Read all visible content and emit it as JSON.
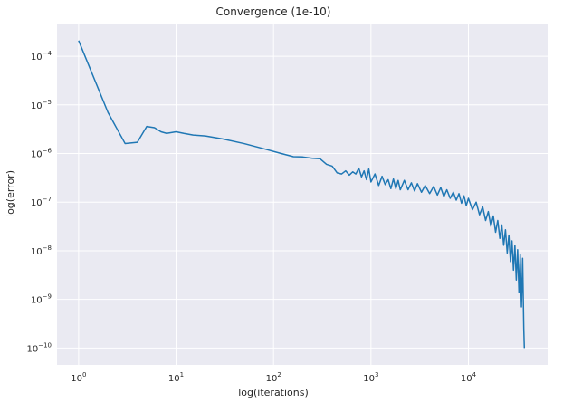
{
  "chart_data": {
    "type": "line",
    "title": "Convergence (1e-10)",
    "xlabel": "log(iterations)",
    "ylabel": "log(error)",
    "xscale": "log",
    "yscale": "log",
    "xlim": [
      0.6,
      65000
    ],
    "ylim": [
      4.5e-11,
      0.00045
    ],
    "grid": true,
    "series_color": "#1f77b4",
    "background_color": "#eaeaf2",
    "grid_color": "#ffffff",
    "x_ticks": [
      {
        "value": 1,
        "base": "10",
        "exp": "0"
      },
      {
        "value": 10,
        "base": "10",
        "exp": "1"
      },
      {
        "value": 100,
        "base": "10",
        "exp": "2"
      },
      {
        "value": 1000,
        "base": "10",
        "exp": "3"
      },
      {
        "value": 10000,
        "base": "10",
        "exp": "4"
      }
    ],
    "y_ticks": [
      {
        "value": 1e-10,
        "base": "10",
        "exp": "−10"
      },
      {
        "value": 1e-09,
        "base": "10",
        "exp": "−9"
      },
      {
        "value": 1e-08,
        "base": "10",
        "exp": "−8"
      },
      {
        "value": 1e-07,
        "base": "10",
        "exp": "−7"
      },
      {
        "value": 1e-06,
        "base": "10",
        "exp": "−6"
      },
      {
        "value": 1e-05,
        "base": "10",
        "exp": "−5"
      },
      {
        "value": 0.0001,
        "base": "10",
        "exp": "−4"
      }
    ],
    "series": [
      {
        "x": [
          1,
          2,
          3,
          4,
          5,
          6,
          7,
          8,
          10,
          12,
          15,
          20,
          30,
          50,
          80,
          120,
          160,
          200,
          250,
          300,
          350,
          400,
          450,
          500,
          550,
          600,
          650,
          700,
          750,
          800,
          850,
          900,
          950,
          1000,
          1100,
          1200,
          1300,
          1400,
          1500,
          1600,
          1700,
          1800,
          1900,
          2000,
          2200,
          2400,
          2600,
          2800,
          3000,
          3300,
          3600,
          4000,
          4400,
          4800,
          5200,
          5600,
          6000,
          6500,
          7000,
          7500,
          8000,
          8500,
          9000,
          9500,
          10000,
          11000,
          12000,
          13000,
          14000,
          15000,
          16000,
          17000,
          18000,
          19000,
          20000,
          21000,
          22000,
          23000,
          24000,
          25000,
          26000,
          27000,
          28000,
          29000,
          30000,
          31000,
          32000,
          33000,
          34000,
          35000,
          36000,
          37000,
          37500
        ],
        "y": [
          0.00021,
          7e-06,
          1.6e-06,
          1.7e-06,
          3.6e-06,
          3.4e-06,
          2.8e-06,
          2.6e-06,
          2.8e-06,
          2.6e-06,
          2.4e-06,
          2.3e-06,
          2e-06,
          1.6e-06,
          1.25e-06,
          1e-06,
          8.6e-07,
          8.5e-07,
          8e-07,
          7.8e-07,
          6e-07,
          5.5e-07,
          4e-07,
          3.8e-07,
          4.4e-07,
          3.6e-07,
          4.2e-07,
          3.8e-07,
          5e-07,
          3.3e-07,
          4.4e-07,
          2.9e-07,
          4.8e-07,
          2.6e-07,
          3.8e-07,
          2.2e-07,
          3.4e-07,
          2.3e-07,
          2.9e-07,
          1.9e-07,
          3e-07,
          1.9e-07,
          2.8e-07,
          1.8e-07,
          2.8e-07,
          1.8e-07,
          2.5e-07,
          1.7e-07,
          2.4e-07,
          1.6e-07,
          2.2e-07,
          1.5e-07,
          2.1e-07,
          1.4e-07,
          2e-07,
          1.3e-07,
          1.8e-07,
          1.2e-07,
          1.6e-07,
          1.1e-07,
          1.5e-07,
          9.5e-08,
          1.35e-07,
          8.5e-08,
          1.2e-07,
          7e-08,
          1e-07,
          5.5e-08,
          8e-08,
          4.2e-08,
          6.4e-08,
          3.2e-08,
          5.2e-08,
          2.4e-08,
          4.2e-08,
          1.8e-08,
          3.4e-08,
          1.3e-08,
          2.7e-08,
          9e-09,
          2.1e-08,
          6e-09,
          1.6e-08,
          4e-09,
          1.3e-08,
          2.5e-09,
          1.05e-08,
          1.4e-09,
          8.5e-09,
          7e-10,
          7e-09,
          2.5e-10,
          1e-10
        ]
      }
    ]
  }
}
